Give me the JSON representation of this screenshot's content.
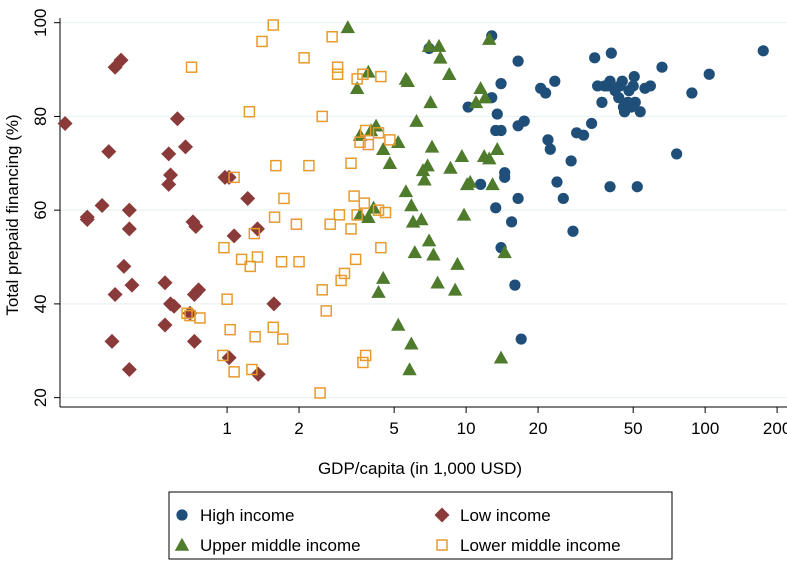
{
  "chart_data": {
    "type": "scatter",
    "title": "",
    "xlabel": "GDP/capita (in 1,000 USD)",
    "ylabel": "Total prepaid financing (%)",
    "xscale": "log",
    "xlim": [
      0.2,
      220
    ],
    "ylim": [
      18,
      101
    ],
    "xticks": [
      {
        "value": 1,
        "label": "1"
      },
      {
        "value": 2,
        "label": "2"
      },
      {
        "value": 5,
        "label": "5"
      },
      {
        "value": 10,
        "label": "10"
      },
      {
        "value": 20,
        "label": "20"
      },
      {
        "value": 50,
        "label": "50"
      },
      {
        "value": 100,
        "label": "100"
      },
      {
        "value": 200,
        "label": "200"
      }
    ],
    "yticks": [
      {
        "value": 20,
        "label": "20"
      },
      {
        "value": 40,
        "label": "40"
      },
      {
        "value": 60,
        "label": "60"
      },
      {
        "value": 80,
        "label": "80"
      },
      {
        "value": 100,
        "label": "100"
      }
    ],
    "grid": "horizontal",
    "legend_position": "bottom",
    "series": [
      {
        "name": "High income",
        "marker": "circle",
        "color": "#1f4e79",
        "points": [
          [
            7.0,
            94.5
          ],
          [
            12.8,
            97.2
          ],
          [
            16.5,
            91.8
          ],
          [
            10.2,
            82.0
          ],
          [
            11.5,
            65.5
          ],
          [
            12.8,
            84.0
          ],
          [
            13.5,
            80.5
          ],
          [
            13.3,
            77.0
          ],
          [
            13.3,
            60.5
          ],
          [
            14.0,
            87.0
          ],
          [
            14.0,
            77.0
          ],
          [
            14.5,
            67.0
          ],
          [
            14.5,
            68.0
          ],
          [
            14.0,
            52.0
          ],
          [
            15.5,
            57.5
          ],
          [
            16.5,
            62.5
          ],
          [
            17.5,
            79.0
          ],
          [
            16.5,
            78.0
          ],
          [
            16.0,
            44.0
          ],
          [
            17.0,
            32.5
          ],
          [
            20.5,
            86.0
          ],
          [
            21.5,
            85.0
          ],
          [
            22.5,
            73.0
          ],
          [
            22.0,
            75.0
          ],
          [
            23.5,
            87.5
          ],
          [
            24.0,
            66.0
          ],
          [
            25.5,
            62.5
          ],
          [
            27.5,
            70.5
          ],
          [
            28.0,
            55.5
          ],
          [
            29.0,
            76.5
          ],
          [
            31.0,
            76.0
          ],
          [
            33.5,
            78.5
          ],
          [
            34.5,
            92.5
          ],
          [
            35.5,
            86.5
          ],
          [
            37.0,
            83.0
          ],
          [
            38.0,
            86.5
          ],
          [
            39.0,
            86.5
          ],
          [
            40.5,
            93.5
          ],
          [
            40.0,
            87.5
          ],
          [
            40.0,
            65.0
          ],
          [
            42.0,
            85.5
          ],
          [
            43.5,
            84.0
          ],
          [
            44.0,
            86.5
          ],
          [
            45.0,
            87.5
          ],
          [
            45.5,
            82.0
          ],
          [
            46.0,
            81.0
          ],
          [
            47.5,
            83.0
          ],
          [
            48.0,
            85.5
          ],
          [
            50.0,
            86.5
          ],
          [
            51.0,
            83.0
          ],
          [
            50.5,
            88.5
          ],
          [
            49.0,
            82.0
          ],
          [
            52.0,
            65.0
          ],
          [
            53.5,
            81.0
          ],
          [
            56.0,
            86.0
          ],
          [
            59.0,
            86.5
          ],
          [
            66.0,
            90.5
          ],
          [
            76.0,
            72.0
          ],
          [
            88.0,
            85.0
          ],
          [
            104.0,
            89.0
          ],
          [
            175.0,
            94.0
          ]
        ]
      },
      {
        "name": "Low income",
        "marker": "diamond",
        "color": "#8b3a3a",
        "points": [
          [
            0.21,
            78.5
          ],
          [
            0.36,
            92.0
          ],
          [
            0.34,
            90.5
          ],
          [
            0.32,
            72.5
          ],
          [
            0.3,
            61.0
          ],
          [
            0.26,
            58.0
          ],
          [
            0.26,
            58.5
          ],
          [
            0.33,
            32.0
          ],
          [
            0.34,
            42.0
          ],
          [
            0.37,
            48.0
          ],
          [
            0.4,
            44.0
          ],
          [
            0.39,
            60.0
          ],
          [
            0.39,
            56.0
          ],
          [
            0.39,
            26.0
          ],
          [
            0.55,
            35.5
          ],
          [
            0.58,
            40.0
          ],
          [
            0.58,
            67.5
          ],
          [
            0.57,
            65.5
          ],
          [
            0.57,
            72.0
          ],
          [
            0.62,
            79.5
          ],
          [
            0.67,
            73.5
          ],
          [
            0.7,
            38.0
          ],
          [
            0.72,
            57.5
          ],
          [
            0.74,
            56.5
          ],
          [
            0.73,
            42.0
          ],
          [
            0.76,
            43.0
          ],
          [
            0.73,
            32.0
          ],
          [
            0.98,
            67.0
          ],
          [
            1.02,
            28.5
          ],
          [
            1.07,
            54.5
          ],
          [
            1.02,
            67.0
          ],
          [
            1.22,
            62.5
          ],
          [
            1.34,
            56.0
          ],
          [
            1.35,
            25.0
          ],
          [
            1.57,
            40.0
          ],
          [
            0.55,
            44.5
          ],
          [
            0.6,
            39.5
          ]
        ]
      },
      {
        "name": "Upper middle income",
        "marker": "triangle",
        "color": "#4f7b2c",
        "points": [
          [
            3.2,
            99.0
          ],
          [
            7.0,
            95.0
          ],
          [
            12.5,
            96.5
          ],
          [
            5.7,
            87.5
          ],
          [
            5.6,
            88.0
          ],
          [
            5.2,
            74.5
          ],
          [
            4.2,
            78.0
          ],
          [
            4.5,
            73.0
          ],
          [
            4.8,
            70.0
          ],
          [
            4.0,
            77.0
          ],
          [
            3.9,
            58.5
          ],
          [
            3.6,
            59.0
          ],
          [
            4.1,
            60.5
          ],
          [
            4.3,
            42.5
          ],
          [
            4.5,
            45.5
          ],
          [
            5.2,
            35.5
          ],
          [
            5.6,
            64.0
          ],
          [
            5.9,
            31.5
          ],
          [
            5.8,
            26.0
          ],
          [
            5.9,
            61.0
          ],
          [
            6.0,
            57.5
          ],
          [
            6.1,
            51.0
          ],
          [
            6.2,
            79.0
          ],
          [
            6.5,
            58.0
          ],
          [
            6.6,
            68.5
          ],
          [
            6.9,
            69.5
          ],
          [
            6.7,
            66.5
          ],
          [
            7.1,
            83.0
          ],
          [
            7.2,
            73.5
          ],
          [
            7.0,
            53.5
          ],
          [
            7.3,
            50.5
          ],
          [
            7.6,
            44.5
          ],
          [
            7.7,
            95.0
          ],
          [
            7.8,
            92.5
          ],
          [
            8.5,
            89.0
          ],
          [
            8.6,
            69.0
          ],
          [
            9.0,
            43.0
          ],
          [
            9.2,
            48.5
          ],
          [
            9.6,
            71.5
          ],
          [
            9.8,
            59.0
          ],
          [
            10.1,
            65.5
          ],
          [
            10.4,
            66.0
          ],
          [
            11.0,
            83.0
          ],
          [
            11.5,
            86.0
          ],
          [
            12.0,
            84.0
          ],
          [
            11.9,
            71.5
          ],
          [
            12.5,
            71.0
          ],
          [
            12.9,
            65.5
          ],
          [
            13.5,
            73.0
          ],
          [
            14.0,
            28.5
          ],
          [
            14.5,
            51.0
          ],
          [
            3.6,
            76.0
          ],
          [
            3.5,
            86.0
          ],
          [
            3.9,
            89.5
          ]
        ]
      },
      {
        "name": "Lower middle income",
        "marker": "square",
        "color": "#e69b2c",
        "points": [
          [
            1.56,
            99.5
          ],
          [
            1.4,
            96.0
          ],
          [
            2.1,
            92.5
          ],
          [
            2.75,
            97.0
          ],
          [
            2.9,
            90.5
          ],
          [
            2.9,
            89.0
          ],
          [
            3.5,
            88.0
          ],
          [
            3.7,
            89.0
          ],
          [
            4.4,
            88.5
          ],
          [
            0.71,
            90.5
          ],
          [
            1.24,
            81.0
          ],
          [
            2.5,
            80.0
          ],
          [
            3.3,
            70.0
          ],
          [
            3.6,
            74.5
          ],
          [
            3.8,
            77.0
          ],
          [
            4.3,
            76.5
          ],
          [
            4.8,
            75.0
          ],
          [
            3.9,
            74.0
          ],
          [
            1.6,
            69.5
          ],
          [
            2.2,
            69.5
          ],
          [
            1.07,
            67.0
          ],
          [
            1.73,
            62.5
          ],
          [
            3.4,
            63.0
          ],
          [
            3.75,
            61.5
          ],
          [
            4.3,
            60.0
          ],
          [
            4.6,
            59.5
          ],
          [
            1.58,
            58.5
          ],
          [
            1.95,
            57.0
          ],
          [
            2.7,
            57.0
          ],
          [
            2.95,
            59.0
          ],
          [
            3.3,
            56.0
          ],
          [
            3.5,
            59.0
          ],
          [
            0.97,
            52.0
          ],
          [
            1.15,
            49.5
          ],
          [
            1.3,
            55.0
          ],
          [
            1.34,
            50.0
          ],
          [
            1.25,
            48.0
          ],
          [
            1.69,
            49.0
          ],
          [
            2.0,
            49.0
          ],
          [
            3.45,
            49.5
          ],
          [
            4.4,
            52.0
          ],
          [
            3.1,
            46.5
          ],
          [
            3.0,
            45.0
          ],
          [
            2.5,
            43.0
          ],
          [
            2.6,
            38.5
          ],
          [
            0.7,
            37.5
          ],
          [
            0.77,
            37.0
          ],
          [
            1.0,
            41.0
          ],
          [
            1.03,
            34.5
          ],
          [
            1.31,
            33.0
          ],
          [
            1.56,
            35.0
          ],
          [
            1.71,
            32.5
          ],
          [
            1.07,
            25.5
          ],
          [
            1.27,
            26.0
          ],
          [
            0.96,
            29.0
          ],
          [
            0.68,
            38.0
          ],
          [
            3.8,
            29.0
          ],
          [
            3.7,
            27.5
          ],
          [
            2.45,
            21.0
          ]
        ]
      }
    ]
  }
}
